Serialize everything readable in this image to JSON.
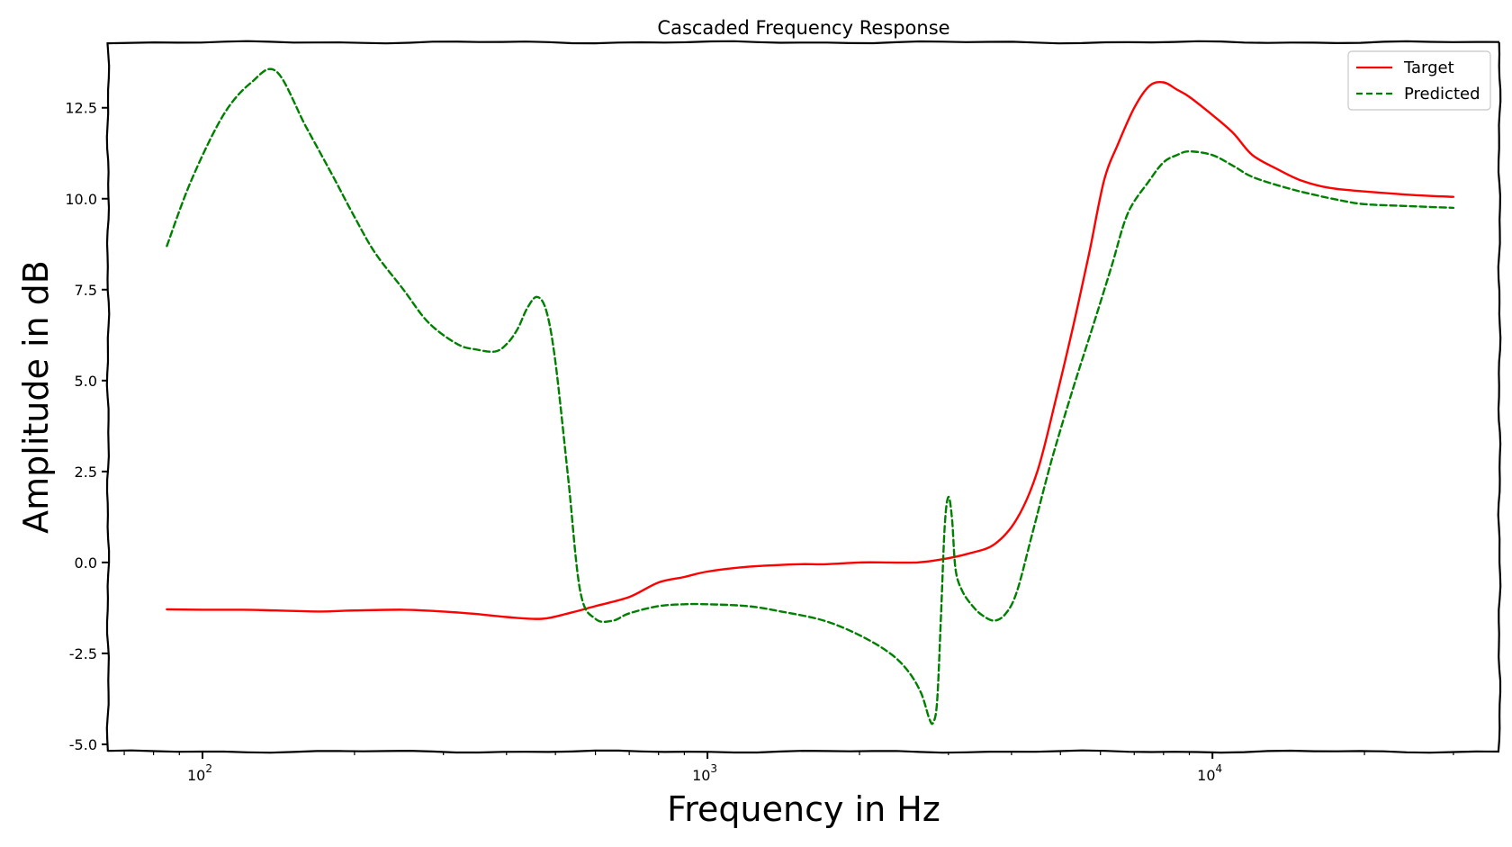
{
  "chart_data": {
    "type": "line",
    "title": "Cascaded Frequency Response",
    "xlabel": "Frequency in Hz",
    "ylabel": "Amplitude in dB",
    "xscale": "log",
    "xlim": [
      65,
      37000
    ],
    "ylim": [
      -5.2,
      14.3
    ],
    "yticks": [
      -5.0,
      -2.5,
      0.0,
      2.5,
      5.0,
      7.5,
      10.0,
      12.5
    ],
    "ytick_labels": [
      "-5.0",
      "-2.5",
      "0.0",
      "2.5",
      "5.0",
      "7.5",
      "10.0",
      "12.5"
    ],
    "xticks": [
      100,
      1000,
      10000
    ],
    "xtick_base": "10",
    "xtick_exponents": [
      "2",
      "3",
      "4"
    ],
    "grid": false,
    "legend_position": "top-right",
    "series": [
      {
        "name": "Target",
        "color": "#ff0000",
        "dash": "solid",
        "x": [
          85,
          100,
          120,
          140,
          170,
          200,
          250,
          300,
          350,
          400,
          470,
          530,
          600,
          700,
          800,
          900,
          1000,
          1200,
          1500,
          1700,
          2000,
          2300,
          2600,
          2900,
          3300,
          3700,
          4100,
          4500,
          4900,
          5300,
          5700,
          6100,
          6500,
          7000,
          7500,
          8000,
          8500,
          9000,
          10000,
          11000,
          12000,
          13500,
          15000,
          17000,
          20000,
          25000,
          30000
        ],
        "y": [
          -1.29,
          -1.3,
          -1.3,
          -1.32,
          -1.35,
          -1.32,
          -1.3,
          -1.35,
          -1.42,
          -1.5,
          -1.55,
          -1.4,
          -1.2,
          -0.95,
          -0.55,
          -0.4,
          -0.25,
          -0.12,
          -0.05,
          -0.05,
          0.0,
          0.0,
          0.0,
          0.08,
          0.25,
          0.5,
          1.2,
          2.5,
          4.5,
          6.5,
          8.5,
          10.5,
          11.5,
          12.5,
          13.1,
          13.2,
          13.0,
          12.8,
          12.3,
          11.8,
          11.2,
          10.8,
          10.5,
          10.3,
          10.2,
          10.1,
          10.05
        ]
      },
      {
        "name": "Predicted",
        "color": "#008000",
        "dash": "dashed",
        "x": [
          85,
          95,
          110,
          125,
          140,
          160,
          180,
          200,
          220,
          250,
          280,
          320,
          350,
          380,
          400,
          420,
          440,
          460,
          480,
          500,
          530,
          560,
          600,
          650,
          700,
          800,
          900,
          1000,
          1200,
          1400,
          1700,
          2000,
          2300,
          2500,
          2650,
          2750,
          2800,
          2850,
          2900,
          2950,
          3000,
          3050,
          3100,
          3200,
          3350,
          3500,
          3700,
          3900,
          4100,
          4400,
          4800,
          5300,
          5800,
          6300,
          6800,
          7500,
          8000,
          8500,
          9000,
          10000,
          11000,
          12000,
          14000,
          16000,
          18000,
          20000,
          24000,
          30000
        ],
        "y": [
          8.7,
          10.5,
          12.3,
          13.2,
          13.5,
          12.0,
          10.7,
          9.5,
          8.5,
          7.5,
          6.6,
          6.0,
          5.85,
          5.8,
          6.0,
          6.4,
          7.0,
          7.3,
          6.9,
          5.5,
          2.3,
          -0.8,
          -1.55,
          -1.6,
          -1.4,
          -1.2,
          -1.15,
          -1.15,
          -1.2,
          -1.35,
          -1.6,
          -2.0,
          -2.5,
          -3.0,
          -3.6,
          -4.3,
          -4.4,
          -3.8,
          -1.5,
          1.0,
          1.8,
          1.2,
          -0.2,
          -0.8,
          -1.2,
          -1.45,
          -1.6,
          -1.4,
          -0.8,
          0.8,
          2.8,
          4.8,
          6.5,
          8.1,
          9.6,
          10.5,
          11.0,
          11.2,
          11.3,
          11.2,
          10.9,
          10.6,
          10.3,
          10.1,
          9.95,
          9.85,
          9.8,
          9.75
        ]
      }
    ]
  }
}
